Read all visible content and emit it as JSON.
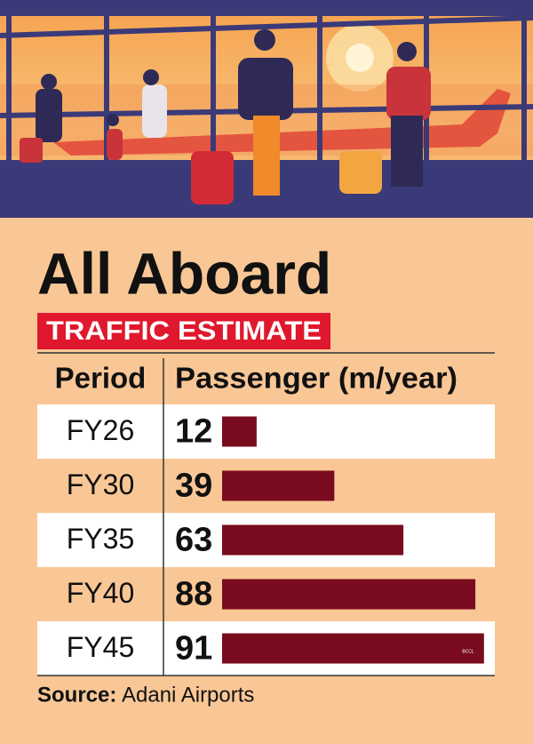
{
  "chart_data": {
    "type": "bar",
    "title": "All Aboard",
    "subtitle": "TRAFFIC ESTIMATE",
    "category_header": "Period",
    "value_header": "Passenger (m/year)",
    "categories": [
      "FY26",
      "FY30",
      "FY35",
      "FY40",
      "FY45"
    ],
    "values": [
      12,
      39,
      63,
      88,
      91
    ],
    "color": "#7a0a1e",
    "source_label": "Source:",
    "source": "Adani Airports",
    "credit": "BCCL"
  }
}
